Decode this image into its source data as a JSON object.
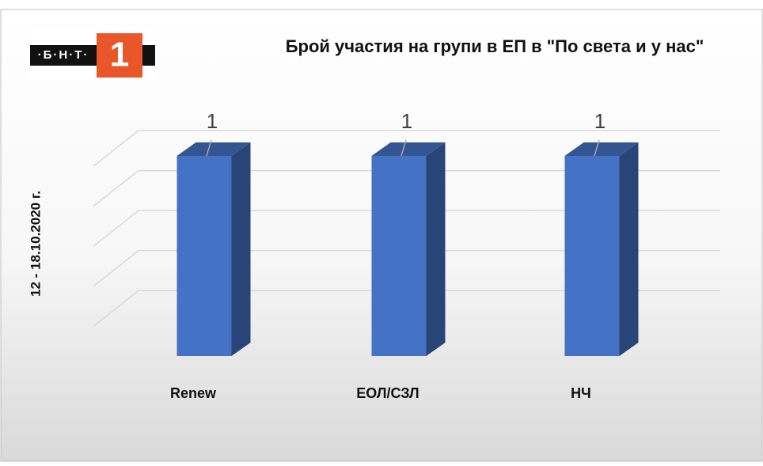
{
  "logo": {
    "text": "·Б·Н·Т·",
    "number": "1"
  },
  "chart_data": {
    "type": "bar",
    "title": "Брой участия на групи в ЕП в \"По света и у нас\"",
    "y_label": "12 - 18.10.2020 г.",
    "categories": [
      "Renew",
      "ЕОЛ/СЗЛ",
      "НЧ"
    ],
    "values": [
      1,
      1,
      1
    ],
    "color": "#4472c4",
    "ylim": [
      0,
      1
    ],
    "yticks": [
      0.2,
      0.4,
      0.6,
      0.8,
      1
    ],
    "grid": true
  }
}
